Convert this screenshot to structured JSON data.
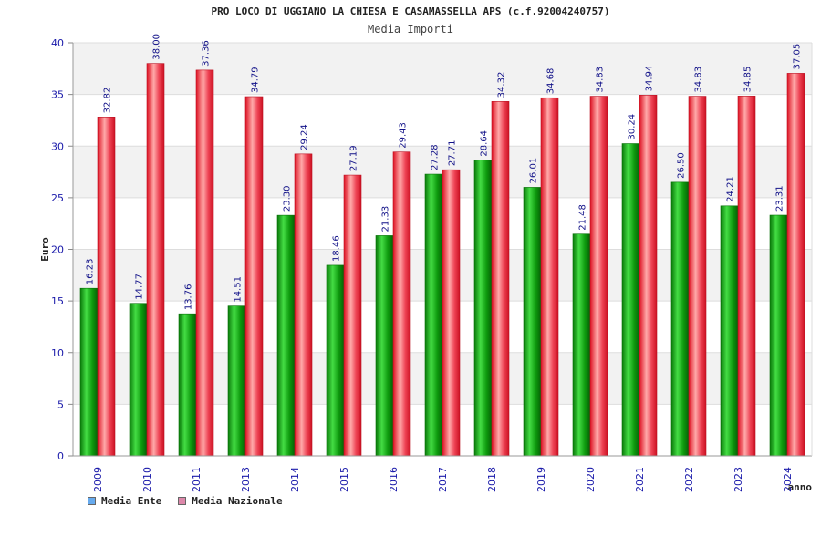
{
  "chart_data": {
    "type": "bar",
    "title": "PRO LOCO DI UGGIANO LA CHIESA E CASAMASSELLA APS (c.f.92004240757)",
    "subtitle": "Media Importi",
    "xlabel": "anno",
    "ylabel": "Euro",
    "ylim": [
      0,
      40
    ],
    "yticks": [
      "0",
      "5",
      "10",
      "15",
      "20",
      "25",
      "30",
      "35",
      "40"
    ],
    "grid": true,
    "legend_position": "bottom-left",
    "categories": [
      "2009",
      "2010",
      "2011",
      "2013",
      "2014",
      "2015",
      "2016",
      "2017",
      "2018",
      "2019",
      "2020",
      "2021",
      "2022",
      "2023",
      "2024"
    ],
    "series": [
      {
        "name": "Media Ente",
        "values": [
          16.23,
          14.77,
          13.76,
          14.51,
          23.3,
          18.46,
          21.33,
          27.28,
          28.64,
          26.01,
          21.48,
          30.24,
          26.5,
          24.21,
          23.31
        ],
        "labels": [
          "16.23",
          "14.77",
          "13.76",
          "14.51",
          "23.30",
          "18.46",
          "21.33",
          "27.28",
          "28.64",
          "26.01",
          "21.48",
          "30.24",
          "26.50",
          "24.21",
          "23.31"
        ],
        "bar_color": "#119911",
        "legend_color": "#66aaee"
      },
      {
        "name": "Media Nazionale",
        "values": [
          32.82,
          38.0,
          37.36,
          34.79,
          29.24,
          27.19,
          29.43,
          27.71,
          34.32,
          34.68,
          34.83,
          34.94,
          34.83,
          34.85,
          37.05
        ],
        "labels": [
          "32.82",
          "38.00",
          "37.36",
          "34.79",
          "29.24",
          "27.19",
          "29.43",
          "27.71",
          "34.32",
          "34.68",
          "34.83",
          "34.94",
          "34.83",
          "34.85",
          "37.05"
        ],
        "bar_color": "#ee2233",
        "legend_color": "#dd88aa"
      }
    ]
  }
}
